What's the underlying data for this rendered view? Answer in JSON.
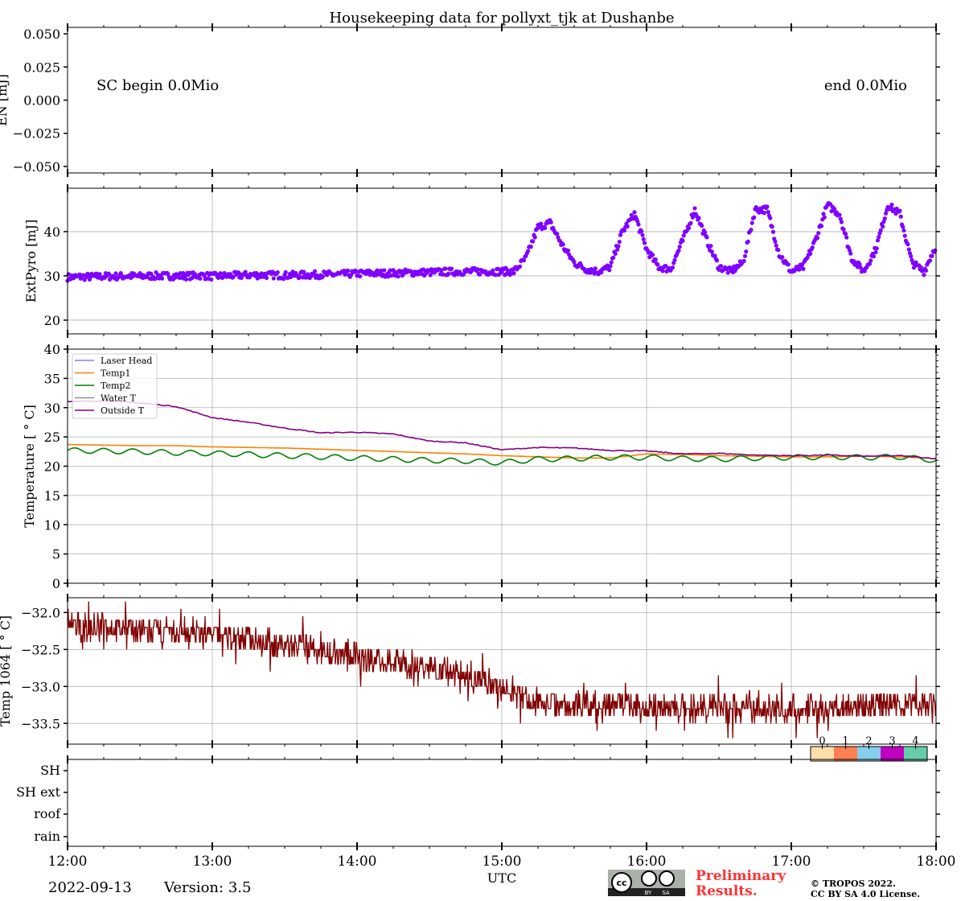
{
  "title": "Housekeeping data for pollyxt_tjk at Dushanbe",
  "x_axis": {
    "label": "UTC",
    "ticks": [
      "12:00",
      "13:00",
      "14:00",
      "15:00",
      "16:00",
      "17:00",
      "18:00"
    ],
    "range_hours": [
      12,
      18
    ]
  },
  "footer": {
    "date": "2022-09-13",
    "version": "Version: 3.5",
    "preliminary": [
      "Preliminary",
      "Results."
    ],
    "copyright": [
      "© TROPOS 2022.",
      "CC BY SA 4.0 License."
    ],
    "license_icon": "cc-by-sa-badge",
    "license_badge_text": [
      "BY",
      "SA"
    ]
  },
  "chart_data": [
    {
      "type": "line",
      "panel": "EN",
      "ylabel": "EN [mJ]",
      "ylim": [
        -0.0549,
        0.0549
      ],
      "yticks": [
        "0.050",
        "0.025",
        "0.000",
        "−0.025",
        "−0.050"
      ],
      "ytick_values": [
        0.05,
        0.025,
        0,
        -0.025,
        -0.05
      ],
      "annotations": {
        "left": "SC begin 0.0Mio",
        "right": "end 0.0Mio"
      },
      "grid": false
    },
    {
      "type": "scatter",
      "panel": "ExtPyro",
      "ylabel": "ExtPyro [mJ]",
      "ylim": [
        16.9,
        49.8
      ],
      "yticks": [
        "20",
        "30",
        "40"
      ],
      "ytick_values": [
        20,
        30,
        40
      ],
      "grid": true,
      "color": "#8000ff",
      "x_step_minutes": 5,
      "values": [
        29.7,
        29.8,
        29.8,
        29.9,
        29.9,
        30.0,
        29.9,
        30.0,
        30.0,
        30.0,
        30.0,
        30.1,
        29.9,
        30.0,
        30.1,
        30.2,
        30.2,
        30.2,
        30.1,
        30.2,
        30.2,
        30.3,
        30.3,
        30.4,
        30.5,
        30.6,
        30.6,
        30.6,
        30.7,
        30.8,
        30.8,
        30.9,
        30.9,
        31.0,
        31.0,
        31.0,
        31.0,
        31.0,
        34.0,
        41.0,
        42.0,
        37.0,
        33.0,
        31.5,
        31.0,
        32.0,
        40.0,
        44.0,
        36.0,
        32.0,
        31.5,
        38.0,
        45.0,
        38.0,
        32.0,
        31.0,
        33.0,
        45.0,
        45.0,
        35.0,
        31.0,
        32.0,
        38.0,
        46.0,
        44.0,
        34.0,
        31.0,
        36.0,
        46.0,
        44.0,
        33.0,
        31.0,
        37.0
      ]
    },
    {
      "type": "line",
      "panel": "Temperature",
      "ylabel": "Temperature [$^\\circ C$]",
      "ylabel_display": "Temperature [ ° C]",
      "ylim": [
        0,
        40
      ],
      "yticks": [
        "0",
        "5",
        "10",
        "15",
        "20",
        "25",
        "30",
        "35",
        "40"
      ],
      "ytick_values": [
        0,
        5,
        10,
        15,
        20,
        25,
        30,
        35,
        40
      ],
      "grid": true,
      "legend_position": "top-left",
      "x_step_minutes": 15,
      "series": [
        {
          "name": "Laser Head",
          "color": "#8080ff",
          "values": []
        },
        {
          "name": "Temp1",
          "color": "#ff8000",
          "values": [
            23.7,
            23.6,
            23.5,
            23.5,
            23.3,
            23.2,
            23.1,
            22.9,
            22.7,
            22.5,
            22.3,
            22.1,
            21.8,
            21.6,
            21.4,
            21.4,
            22.1,
            22.0,
            21.8,
            21.7,
            21.6,
            21.6,
            21.7,
            21.6,
            21.3
          ]
        },
        {
          "name": "Temp2",
          "color": "#008000",
          "values": [
            22.7,
            22.6,
            22.5,
            22.3,
            22.2,
            22.0,
            21.8,
            21.6,
            21.4,
            21.2,
            21.0,
            20.9,
            20.6,
            21.2,
            21.3,
            21.5,
            21.5,
            21.3,
            21.2,
            21.4,
            21.5,
            21.6,
            21.5,
            21.6,
            21.0
          ]
        },
        {
          "name": "Water T",
          "color": "#909090",
          "values": []
        },
        {
          "name": "Outside T",
          "color": "#800080",
          "values": [
            31.0,
            31.2,
            30.8,
            30.2,
            28.3,
            27.5,
            26.5,
            25.7,
            25.8,
            25.5,
            24.3,
            24.0,
            22.8,
            23.2,
            23.1,
            22.7,
            22.6,
            22.1,
            22.2,
            21.9,
            21.8,
            21.9,
            21.7,
            21.8,
            21.3
          ]
        }
      ]
    },
    {
      "type": "line",
      "panel": "Temp1064",
      "ylabel": "Temp 1064 [ ° C]",
      "ylim": [
        -33.78,
        -31.8
      ],
      "yticks": [
        "−32.0",
        "−32.5",
        "−33.0",
        "−33.5"
      ],
      "ytick_values": [
        -32.0,
        -32.5,
        -33.0,
        -33.5
      ],
      "grid": true,
      "color": "#800000",
      "x_step_minutes": 15,
      "values": [
        -32.2,
        -32.2,
        -32.25,
        -32.3,
        -32.3,
        -32.35,
        -32.45,
        -32.5,
        -32.6,
        -32.65,
        -32.75,
        -32.85,
        -33.05,
        -33.2,
        -33.25,
        -33.25,
        -33.25,
        -33.3,
        -33.3,
        -33.3,
        -33.3,
        -33.3,
        -33.25,
        -33.25,
        -33.2
      ]
    },
    {
      "type": "heatmap",
      "panel": "Status",
      "categories": [
        "SH",
        "SH ext",
        "roof",
        "rain"
      ],
      "colorbar": {
        "ticks": [
          "0",
          "1",
          "2",
          "3",
          "4"
        ],
        "colors": [
          "#fddeaa",
          "#ff8050",
          "#87ceeb",
          "#c000c0",
          "#66cdaa"
        ]
      }
    }
  ]
}
